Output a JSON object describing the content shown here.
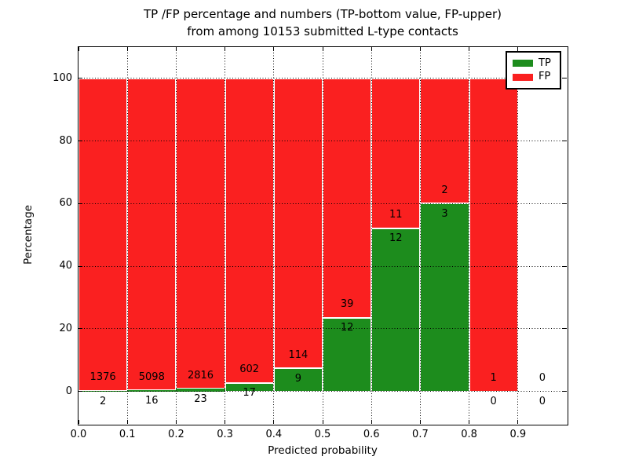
{
  "chart_data": {
    "type": "bar",
    "stacked": true,
    "title_lines": [
      "TP /FP percentage and numbers (TP-bottom value, FP-upper)",
      "from among 10153 submitted L-type contacts"
    ],
    "total_submitted": 10153,
    "xlabel": "Predicted probability",
    "ylabel": "Percentage",
    "bin_width": 0.1,
    "bin_starts": [
      0.0,
      0.1,
      0.2,
      0.3,
      0.4,
      0.5,
      0.6,
      0.7,
      0.8,
      0.9
    ],
    "series": [
      {
        "name": "TP",
        "color": "#1d8c1d",
        "counts": [
          2,
          16,
          23,
          17,
          9,
          12,
          12,
          3,
          0,
          0
        ]
      },
      {
        "name": "FP",
        "color": "#fa2020",
        "counts": [
          1376,
          5098,
          2816,
          602,
          114,
          39,
          11,
          2,
          1,
          0
        ]
      }
    ],
    "tp_percent": [
      0.15,
      0.31,
      0.81,
      2.75,
      7.32,
      23.53,
      52.17,
      60.0,
      0.0,
      null
    ],
    "x_ticks": [
      "0.0",
      "0.1",
      "0.2",
      "0.3",
      "0.4",
      "0.5",
      "0.6",
      "0.7",
      "0.8",
      "0.9"
    ],
    "y_ticks": [
      "0",
      "20",
      "40",
      "60",
      "80",
      "100"
    ],
    "xlim": [
      0.0,
      1.0
    ],
    "ylim": [
      -10.4,
      110
    ],
    "grid": "dotted-black",
    "background": "#ffffff",
    "legend": {
      "position": "upper right",
      "entries": [
        "TP",
        "FP"
      ]
    }
  }
}
